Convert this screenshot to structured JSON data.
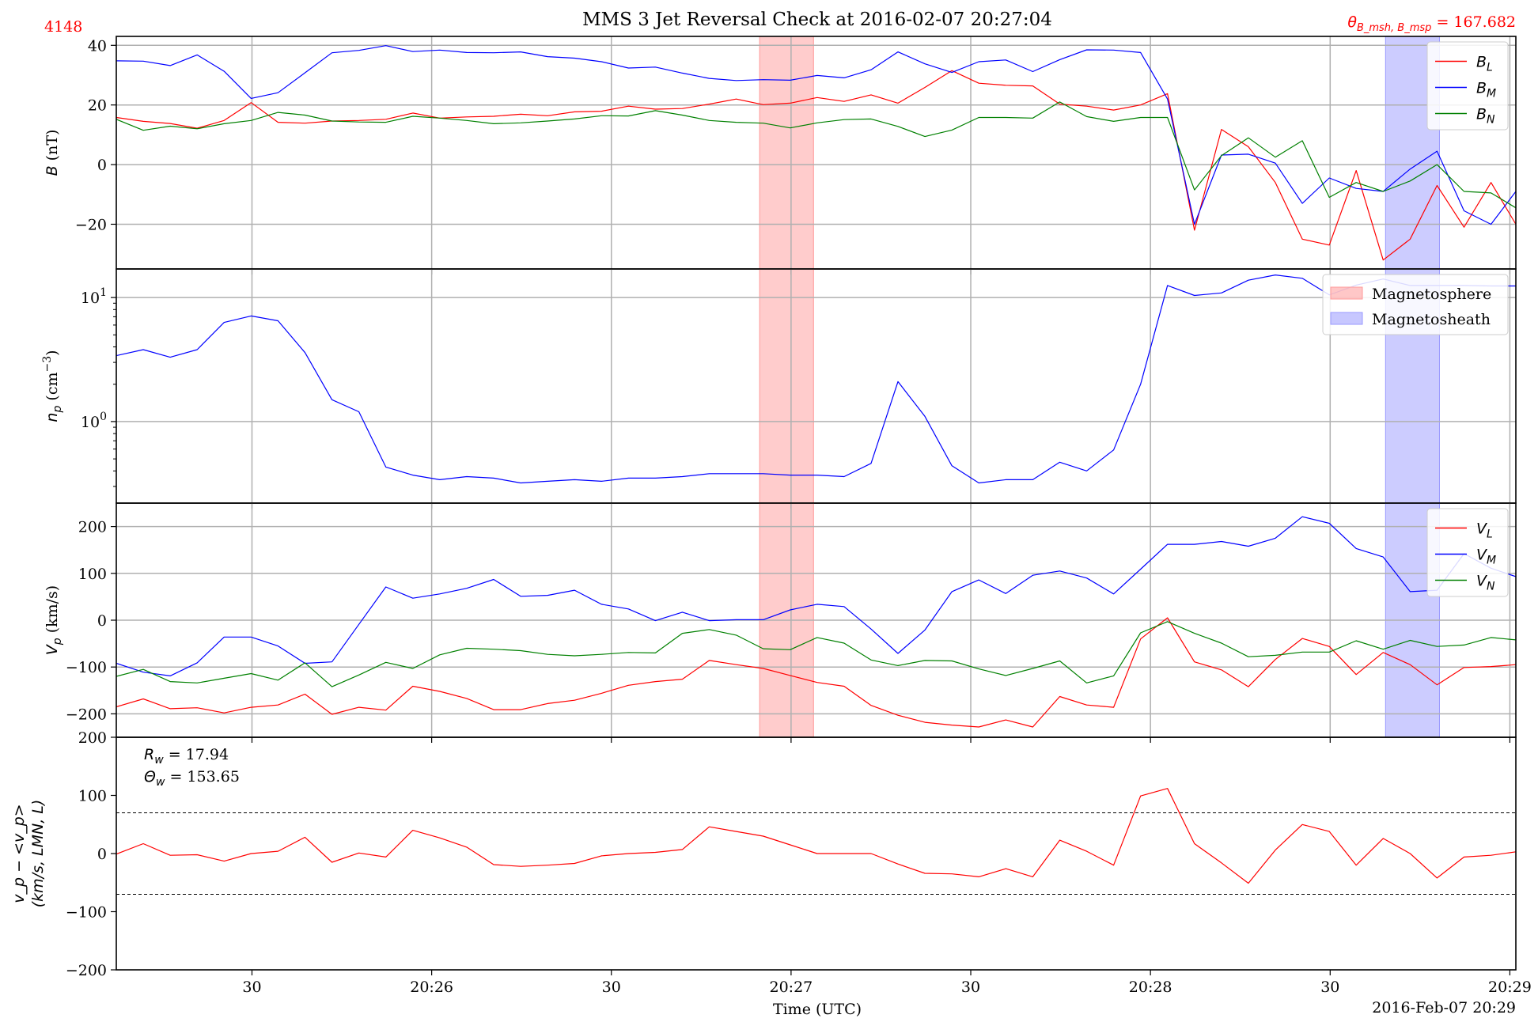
{
  "figure": {
    "title": "MMS 3 Jet Reversal Check at 2016-02-07 20:27:04",
    "event_id": "4148",
    "theta_label": "θ",
    "theta_sub": "B_msh, B_msp",
    "theta_value": " = 167.682",
    "xlabel": "Time (UTC)",
    "date_footer": "2016-Feb-07 20:29",
    "x_ticks": [
      {
        "t": 30,
        "label": "30"
      },
      {
        "t": 90,
        "label": "20:26"
      },
      {
        "t": 150,
        "label": "30"
      },
      {
        "t": 210,
        "label": "20:27"
      },
      {
        "t": 270,
        "label": "30"
      },
      {
        "t": 330,
        "label": "20:28"
      },
      {
        "t": 390,
        "label": "30"
      },
      {
        "t": 450,
        "label": "20:29"
      }
    ],
    "xlim": [
      -15.3,
      452
    ],
    "colors": {
      "L": "#ff0000",
      "M": "#0000ff",
      "N": "#008000",
      "msp": "#ff9999",
      "msh": "#9999ff"
    }
  },
  "chart_data": [
    {
      "id": "B",
      "type": "line",
      "ylabel_italic": "B",
      "ylabel_rest": " (nT)",
      "ylim": [
        -35,
        43
      ],
      "yticks": [
        {
          "v": 40,
          "label": "40"
        },
        {
          "v": 20,
          "label": "20"
        },
        {
          "v": 0,
          "label": "0"
        },
        {
          "v": -20,
          "label": "−20"
        }
      ],
      "shaded": [
        {
          "x0": 199.5,
          "x1": 217.5,
          "kind": "msp"
        },
        {
          "x0": 408.5,
          "x1": 426.5,
          "kind": "msh"
        }
      ],
      "legend": [
        {
          "name": "B",
          "sub": "L",
          "color": "L"
        },
        {
          "name": "B",
          "sub": "M",
          "color": "M"
        },
        {
          "name": "B",
          "sub": "N",
          "color": "N"
        }
      ],
      "x": [
        -15.3,
        -6.3,
        2.7,
        11.7,
        20.7,
        29.7,
        38.7,
        47.7,
        56.7,
        65.7,
        74.7,
        83.7,
        92.7,
        101.7,
        110.7,
        119.7,
        128.7,
        137.7,
        146.7,
        155.7,
        164.7,
        173.7,
        182.7,
        191.7,
        200.7,
        209.7,
        218.7,
        227.7,
        236.7,
        245.7,
        254.7,
        263.7,
        272.7,
        281.7,
        290.7,
        299.7,
        308.7,
        317.7,
        326.7,
        335.7,
        344.7,
        353.7,
        362.7,
        371.7,
        380.7,
        389.7,
        398.7,
        407.7,
        416.7,
        425.7,
        434.7,
        443.7,
        452
      ],
      "series": [
        {
          "name": "B_L",
          "color": "L",
          "values": [
            15.8,
            14.5,
            13.8,
            12.2,
            14.8,
            20.8,
            14.2,
            13.9,
            14.6,
            14.8,
            15.2,
            17.3,
            15.6,
            16.0,
            16.2,
            16.9,
            16.4,
            17.7,
            17.9,
            19.6,
            18.6,
            18.8,
            20.3,
            22.0,
            20.1,
            20.6,
            22.5,
            21.2,
            23.4,
            20.6,
            25.9,
            31.5,
            27.3,
            26.6,
            26.4,
            20.3,
            19.6,
            18.3,
            20.0,
            23.8,
            -22.0,
            11.8,
            6.0,
            -6.0,
            -25.0,
            -27.0,
            -2.0,
            -32.0,
            -25.0,
            -7.0,
            -21.0,
            -6.0,
            -20.0
          ]
        },
        {
          "name": "B_M",
          "color": "M",
          "values": [
            34.8,
            34.7,
            33.2,
            36.8,
            31.3,
            22.2,
            24.1,
            30.8,
            37.5,
            38.3,
            39.9,
            37.9,
            38.4,
            37.6,
            37.5,
            37.8,
            36.2,
            35.7,
            34.5,
            32.4,
            32.7,
            30.7,
            28.9,
            28.2,
            28.5,
            28.3,
            29.9,
            29.1,
            31.8,
            37.8,
            33.8,
            30.9,
            34.5,
            35.1,
            31.2,
            35.2,
            38.5,
            38.4,
            37.6,
            22.0,
            -20.0,
            3.2,
            3.5,
            0.5,
            -13.0,
            -4.5,
            -8.0,
            -9.0,
            -1.5,
            4.5,
            -15.5,
            -20.0,
            -9.0
          ]
        },
        {
          "name": "B_N",
          "color": "N",
          "values": [
            15.2,
            11.5,
            12.9,
            12.0,
            13.7,
            14.8,
            17.5,
            16.6,
            14.6,
            14.3,
            14.2,
            16.2,
            15.6,
            14.8,
            13.7,
            14.0,
            14.6,
            15.3,
            16.4,
            16.3,
            18.1,
            16.6,
            14.8,
            14.2,
            13.9,
            12.3,
            14.0,
            15.1,
            15.3,
            12.8,
            9.4,
            11.6,
            15.8,
            15.8,
            15.6,
            21.0,
            16.1,
            14.5,
            15.8,
            15.8,
            -8.5,
            3.0,
            9.0,
            2.5,
            8.0,
            -11.0,
            -6.0,
            -9.0,
            -5.5,
            0.0,
            -9.0,
            -9.5,
            -14.5
          ]
        }
      ]
    },
    {
      "id": "np",
      "type": "line",
      "yscale": "log",
      "ylabel_italic": "n",
      "ylabel_sub": "p",
      "ylabel_rest": " (cm",
      "ylabel_sup": "−3",
      "ylabel_close": ")",
      "ylim": [
        0.22,
        17
      ],
      "yticks": [
        {
          "v": 10,
          "label": "10",
          "sup": "1"
        },
        {
          "v": 1,
          "label": "10",
          "sup": "0"
        }
      ],
      "shaded": [
        {
          "x0": 199.5,
          "x1": 217.5,
          "kind": "msp"
        },
        {
          "x0": 408.5,
          "x1": 426.5,
          "kind": "msh"
        }
      ],
      "legend": [
        {
          "name": "Magnetosphere",
          "color": "msp",
          "patch": true
        },
        {
          "name": "Magnetosheath",
          "color": "msh",
          "patch": true
        }
      ],
      "x": [
        -15.3,
        -6.3,
        2.7,
        11.7,
        20.7,
        29.7,
        38.7,
        47.7,
        56.7,
        65.7,
        74.7,
        83.7,
        92.7,
        101.7,
        110.7,
        119.7,
        128.7,
        137.7,
        146.7,
        155.7,
        164.7,
        173.7,
        182.7,
        191.7,
        200.7,
        209.7,
        218.7,
        227.7,
        236.7,
        245.7,
        254.7,
        263.7,
        272.7,
        281.7,
        290.7,
        299.7,
        308.7,
        317.7,
        326.7,
        335.7,
        344.7,
        353.7,
        362.7,
        371.7,
        380.7,
        389.7,
        398.7,
        407.7,
        416.7,
        425.7,
        434.7,
        443.7,
        452
      ],
      "series": [
        {
          "name": "n_p",
          "color": "M",
          "values": [
            3.4,
            3.8,
            3.3,
            3.8,
            6.3,
            7.1,
            6.5,
            3.6,
            1.5,
            1.2,
            0.43,
            0.37,
            0.34,
            0.36,
            0.35,
            0.32,
            0.33,
            0.34,
            0.33,
            0.35,
            0.35,
            0.36,
            0.38,
            0.38,
            0.38,
            0.37,
            0.37,
            0.36,
            0.46,
            2.1,
            1.1,
            0.44,
            0.32,
            0.34,
            0.34,
            0.47,
            0.4,
            0.59,
            2.0,
            12.5,
            10.4,
            10.9,
            13.8,
            15.2,
            14.3,
            10.5,
            12.6,
            14.1,
            12.5,
            12.5,
            12.5,
            12.4,
            12.4
          ]
        }
      ]
    },
    {
      "id": "Vp",
      "type": "line",
      "ylabel_italic": "V",
      "ylabel_sub": "p",
      "ylabel_rest": " (km/s)",
      "ylim": [
        -250,
        250
      ],
      "yticks": [
        {
          "v": 200,
          "label": "200"
        },
        {
          "v": 100,
          "label": "100"
        },
        {
          "v": 0,
          "label": "0"
        },
        {
          "v": -100,
          "label": "−100"
        },
        {
          "v": -200,
          "label": "−200"
        }
      ],
      "shaded": [
        {
          "x0": 199.5,
          "x1": 217.5,
          "kind": "msp"
        },
        {
          "x0": 408.5,
          "x1": 426.5,
          "kind": "msh"
        }
      ],
      "legend": [
        {
          "name": "V",
          "sub": "L",
          "color": "L"
        },
        {
          "name": "V",
          "sub": "M",
          "color": "M"
        },
        {
          "name": "V",
          "sub": "N",
          "color": "N"
        }
      ],
      "x": [
        -15.3,
        -6.3,
        2.7,
        11.7,
        20.7,
        29.7,
        38.7,
        47.7,
        56.7,
        65.7,
        74.7,
        83.7,
        92.7,
        101.7,
        110.7,
        119.7,
        128.7,
        137.7,
        146.7,
        155.7,
        164.7,
        173.7,
        182.7,
        191.7,
        200.7,
        209.7,
        218.7,
        227.7,
        236.7,
        245.7,
        254.7,
        263.7,
        272.7,
        281.7,
        290.7,
        299.7,
        308.7,
        317.7,
        326.7,
        335.7,
        344.7,
        353.7,
        362.7,
        371.7,
        380.7,
        389.7,
        398.7,
        407.7,
        416.7,
        425.7,
        434.7,
        443.7,
        452
      ],
      "series": [
        {
          "name": "V_L",
          "color": "L",
          "values": [
            -185,
            -168,
            -189,
            -187,
            -198,
            -186,
            -181,
            -158,
            -201,
            -186,
            -192,
            -141,
            -152,
            -167,
            -191,
            -191,
            -178,
            -171,
            -156,
            -139,
            -131,
            -126,
            -86,
            -95,
            -103,
            -118,
            -133,
            -141,
            -182,
            -203,
            -218,
            -224,
            -228,
            -213,
            -228,
            -163,
            -181,
            -186,
            -40,
            5,
            -89,
            -106,
            -142,
            -84,
            -39,
            -56,
            -116,
            -69,
            -95,
            -138,
            -101,
            -99,
            -95
          ]
        },
        {
          "name": "V_M",
          "color": "M",
          "values": [
            -92,
            -111,
            -119,
            -91,
            -36,
            -36,
            -55,
            -92,
            -89,
            -9,
            71,
            47,
            56,
            68,
            87,
            51,
            53,
            64,
            34,
            24,
            -1,
            17,
            -1,
            1,
            1,
            22,
            34,
            29,
            -19,
            -71,
            -21,
            61,
            86,
            57,
            96,
            105,
            90,
            56,
            109,
            162,
            162,
            168,
            158,
            175,
            221,
            207,
            153,
            135,
            61,
            64,
            142,
            111,
            93
          ]
        },
        {
          "name": "V_N",
          "color": "N",
          "values": [
            -120,
            -105,
            -131,
            -134,
            -124,
            -114,
            -128,
            -91,
            -142,
            -117,
            -90,
            -103,
            -74,
            -60,
            -62,
            -65,
            -73,
            -76,
            -73,
            -69,
            -70,
            -28,
            -20,
            -32,
            -61,
            -63,
            -37,
            -49,
            -85,
            -97,
            -86,
            -87,
            -104,
            -118,
            -103,
            -87,
            -134,
            -119,
            -27,
            -3,
            -28,
            -49,
            -78,
            -75,
            -68,
            -68,
            -44,
            -62,
            -43,
            -56,
            -53,
            -37,
            -42
          ]
        }
      ]
    },
    {
      "id": "dV",
      "type": "line",
      "ylabel_line1": "v_p − <v_p>",
      "ylabel_line2": "(km/s, LMN, L)",
      "ylim": [
        -200,
        200
      ],
      "yticks": [
        {
          "v": 200,
          "label": "200"
        },
        {
          "v": 100,
          "label": "100"
        },
        {
          "v": 0,
          "label": "0"
        },
        {
          "v": -100,
          "label": "−100"
        },
        {
          "v": -200,
          "label": "−200"
        }
      ],
      "hlines": [
        70,
        -70
      ],
      "annotations": [
        {
          "sym": "R",
          "sub": "w",
          "text": " = 17.94"
        },
        {
          "sym": "Θ",
          "sub": "w",
          "text": " = 153.65"
        }
      ],
      "x": [
        -15.3,
        -6.3,
        2.7,
        11.7,
        20.7,
        29.7,
        38.7,
        47.7,
        56.7,
        65.7,
        74.7,
        83.7,
        92.7,
        101.7,
        110.7,
        119.7,
        128.7,
        137.7,
        146.7,
        155.7,
        164.7,
        173.7,
        182.7,
        191.7,
        200.7,
        209.7,
        218.7,
        227.7,
        236.7,
        245.7,
        254.7,
        263.7,
        272.7,
        281.7,
        290.7,
        299.7,
        308.7,
        317.7,
        326.7,
        335.7,
        344.7,
        353.7,
        362.7,
        371.7,
        380.7,
        389.7,
        398.7,
        407.7,
        416.7,
        425.7,
        434.7,
        443.7,
        452
      ],
      "series": [
        {
          "name": "dV_L",
          "color": "L",
          "values": [
            -1,
            17,
            -3,
            -2,
            -13,
            0,
            4,
            28,
            -15,
            1,
            -6,
            40,
            27,
            11,
            -19,
            -22,
            -20,
            -17,
            -4,
            0,
            2,
            7,
            46,
            38,
            30,
            15,
            0,
            0,
            0,
            -18,
            -34,
            -35,
            -40,
            -26,
            -40,
            23,
            4,
            -20,
            99,
            112,
            17,
            -16,
            -51,
            6,
            50,
            38,
            -20,
            26,
            0,
            -42,
            -6,
            -3,
            3
          ]
        }
      ]
    }
  ]
}
